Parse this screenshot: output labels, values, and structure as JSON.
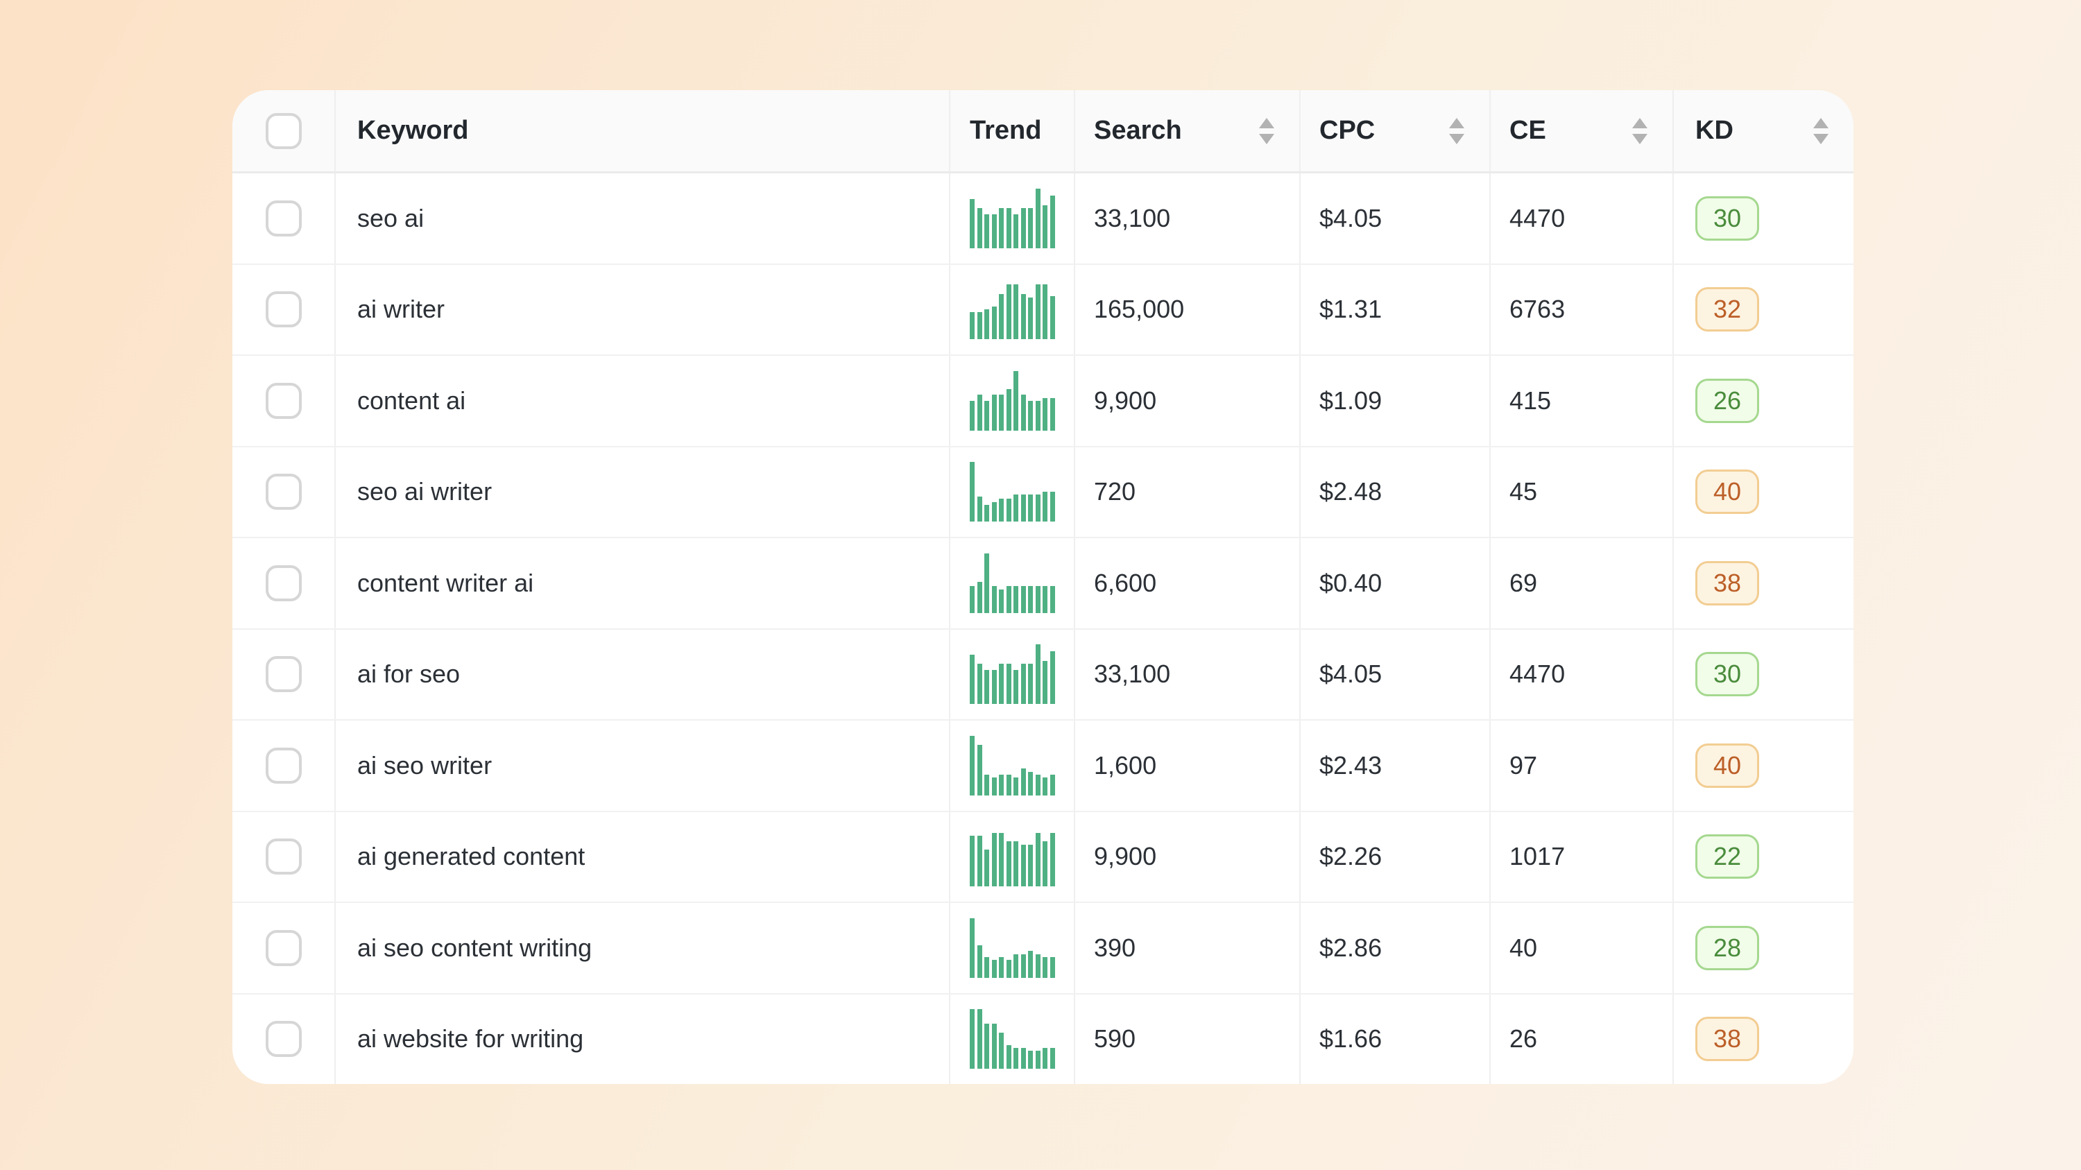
{
  "background": {
    "gradient_from": "#fce2c6",
    "gradient_mid": "#faedda",
    "gradient_to": "#fbf2ea"
  },
  "colors": {
    "card_bg": "#ffffff",
    "header_bg": "#fafafa",
    "row_divider": "#f1f1f1",
    "column_divider": "#efefef",
    "cell_text": "#2b3036",
    "header_text": "#23282e",
    "sparkline_green": "#4fb083",
    "sort_icon_gray": "#b2b2b2",
    "checkbox_border": "#d6d6d6",
    "kd_green_bg": "#f1fce9",
    "kd_green_border": "#a5d88f",
    "kd_green_text": "#4a8c3c",
    "kd_orange_bg": "#fdf3e1",
    "kd_orange_border": "#f2cd92",
    "kd_orange_text": "#bc5f28"
  },
  "table": {
    "columns": [
      {
        "id": "select",
        "label": "",
        "sortable": false
      },
      {
        "id": "keyword",
        "label": "Keyword",
        "sortable": false
      },
      {
        "id": "trend",
        "label": "Trend",
        "sortable": false
      },
      {
        "id": "search",
        "label": "Search",
        "sortable": true
      },
      {
        "id": "cpc",
        "label": "CPC",
        "sortable": true
      },
      {
        "id": "ce",
        "label": "CE",
        "sortable": true
      },
      {
        "id": "kd",
        "label": "KD",
        "sortable": true
      }
    ],
    "rows": [
      {
        "keyword": "seo ai",
        "search": "33,100",
        "cpc": "$4.05",
        "ce": "4470",
        "kd": "30",
        "kd_level": "green",
        "checked": false,
        "trend": [
          0.82,
          0.68,
          0.57,
          0.57,
          0.68,
          0.68,
          0.57,
          0.68,
          0.68,
          1.0,
          0.72,
          0.88
        ]
      },
      {
        "keyword": "ai writer",
        "search": "165,000",
        "cpc": "$1.31",
        "ce": "6763",
        "kd": "32",
        "kd_level": "orange",
        "checked": false,
        "trend": [
          0.45,
          0.45,
          0.5,
          0.55,
          0.75,
          0.92,
          0.92,
          0.75,
          0.7,
          0.92,
          0.92,
          0.72
        ]
      },
      {
        "keyword": "content ai",
        "search": "9,900",
        "cpc": "$1.09",
        "ce": "415",
        "kd": "26",
        "kd_level": "green",
        "checked": false,
        "trend": [
          0.5,
          0.6,
          0.5,
          0.6,
          0.6,
          0.7,
          1.0,
          0.6,
          0.5,
          0.5,
          0.55,
          0.55
        ]
      },
      {
        "keyword": "seo ai writer",
        "search": "720",
        "cpc": "$2.48",
        "ce": "45",
        "kd": "40",
        "kd_level": "orange",
        "checked": false,
        "trend": [
          1.0,
          0.42,
          0.28,
          0.33,
          0.38,
          0.38,
          0.45,
          0.45,
          0.45,
          0.45,
          0.5,
          0.5
        ]
      },
      {
        "keyword": "content writer ai",
        "search": "6,600",
        "cpc": "$0.40",
        "ce": "69",
        "kd": "38",
        "kd_level": "orange",
        "checked": false,
        "trend": [
          0.45,
          0.52,
          1.0,
          0.45,
          0.4,
          0.45,
          0.45,
          0.45,
          0.45,
          0.45,
          0.45,
          0.45
        ]
      },
      {
        "keyword": "ai for seo",
        "search": "33,100",
        "cpc": "$4.05",
        "ce": "4470",
        "kd": "30",
        "kd_level": "green",
        "checked": false,
        "trend": [
          0.82,
          0.68,
          0.57,
          0.57,
          0.68,
          0.68,
          0.57,
          0.68,
          0.68,
          1.0,
          0.72,
          0.88
        ]
      },
      {
        "keyword": "ai seo writer",
        "search": "1,600",
        "cpc": "$2.43",
        "ce": "97",
        "kd": "40",
        "kd_level": "orange",
        "checked": false,
        "trend": [
          1.0,
          0.85,
          0.35,
          0.3,
          0.35,
          0.35,
          0.3,
          0.45,
          0.4,
          0.35,
          0.3,
          0.35
        ]
      },
      {
        "keyword": "ai generated content",
        "search": "9,900",
        "cpc": "$2.26",
        "ce": "1017",
        "kd": "22",
        "kd_level": "green",
        "checked": false,
        "trend": [
          0.85,
          0.85,
          0.62,
          0.9,
          0.9,
          0.75,
          0.75,
          0.7,
          0.7,
          0.9,
          0.75,
          0.9
        ]
      },
      {
        "keyword": "ai seo content writing",
        "search": "390",
        "cpc": "$2.86",
        "ce": "40",
        "kd": "28",
        "kd_level": "green",
        "checked": false,
        "trend": [
          1.0,
          0.55,
          0.35,
          0.3,
          0.35,
          0.3,
          0.4,
          0.4,
          0.45,
          0.4,
          0.35,
          0.35
        ]
      },
      {
        "keyword": "ai website for writing",
        "search": "590",
        "cpc": "$1.66",
        "ce": "26",
        "kd": "38",
        "kd_level": "orange",
        "checked": false,
        "trend": [
          1.0,
          1.0,
          0.75,
          0.75,
          0.6,
          0.4,
          0.35,
          0.35,
          0.3,
          0.3,
          0.35,
          0.35
        ]
      }
    ]
  }
}
